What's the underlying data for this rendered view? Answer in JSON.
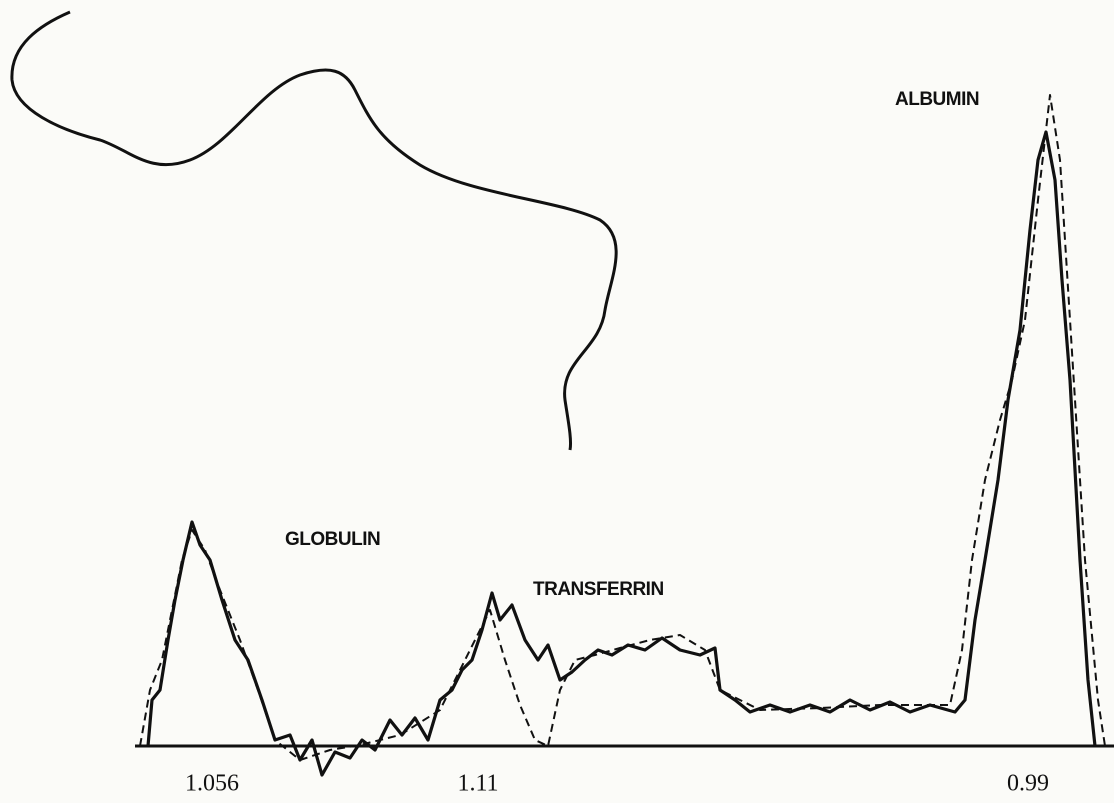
{
  "peaks": [
    {
      "label": "GLOBULIN"
    },
    {
      "label": "TRANSFERRIN"
    },
    {
      "label": "ALBUMIN"
    }
  ],
  "markers": [
    "1.056",
    "1.11",
    "0.99"
  ]
}
